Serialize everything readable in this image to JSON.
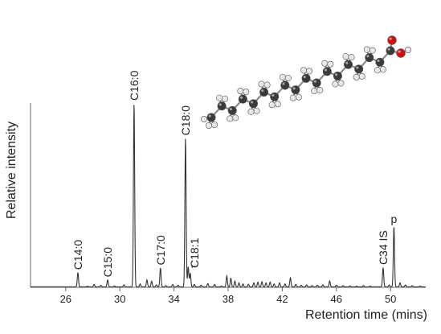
{
  "chart_data": {
    "type": "line",
    "xlabel": "Retention time (mins)",
    "ylabel": "Relative intensity",
    "xlim": [
      23.4,
      52.6
    ],
    "ylim": [
      0,
      100
    ],
    "xticks": [
      26,
      30,
      34,
      38,
      42,
      46,
      50
    ],
    "grid": false,
    "legend": "none",
    "line_color": "#333333",
    "series": [
      {
        "peaks": [
          [
            26.9,
            7.8
          ],
          [
            27.6,
            0.4
          ],
          [
            28.1,
            1.4
          ],
          [
            28.6,
            0.8
          ],
          [
            29.1,
            3.8
          ],
          [
            29.6,
            0.5
          ],
          [
            30.3,
            1.1
          ],
          [
            31.05,
            100.0
          ],
          [
            31.5,
            1.6
          ],
          [
            32.0,
            3.8
          ],
          [
            32.35,
            3.1
          ],
          [
            32.7,
            1.1
          ],
          [
            33.0,
            10.3
          ],
          [
            33.4,
            0.7
          ],
          [
            33.9,
            1.3
          ],
          [
            34.3,
            0.9
          ],
          [
            34.85,
            81.0
          ],
          [
            35.05,
            11.0
          ],
          [
            35.2,
            7.5
          ],
          [
            35.5,
            1.3
          ],
          [
            36.0,
            0.9
          ],
          [
            36.5,
            1.8
          ],
          [
            37.0,
            1.3
          ],
          [
            37.5,
            0.5
          ],
          [
            37.9,
            5.9
          ],
          [
            38.2,
            4.8
          ],
          [
            38.5,
            3.2
          ],
          [
            38.8,
            2.2
          ],
          [
            39.1,
            1.6
          ],
          [
            39.5,
            1.4
          ],
          [
            39.9,
            2.2
          ],
          [
            40.2,
            2.6
          ],
          [
            40.5,
            2.8
          ],
          [
            40.8,
            2.2
          ],
          [
            41.1,
            2.6
          ],
          [
            41.4,
            1.6
          ],
          [
            41.8,
            2.2
          ],
          [
            42.2,
            1.6
          ],
          [
            42.6,
            5.0
          ],
          [
            43.0,
            1.4
          ],
          [
            43.4,
            0.9
          ],
          [
            43.8,
            1.1
          ],
          [
            44.2,
            0.7
          ],
          [
            44.6,
            0.9
          ],
          [
            45.0,
            1.1
          ],
          [
            45.5,
            3.2
          ],
          [
            46.0,
            0.9
          ],
          [
            46.5,
            0.7
          ],
          [
            47.0,
            0.5
          ],
          [
            47.5,
            0.4
          ],
          [
            48.0,
            0.7
          ],
          [
            48.5,
            0.5
          ],
          [
            49.45,
            10.5
          ],
          [
            49.9,
            1.0
          ],
          [
            50.25,
            33.0
          ],
          [
            50.7,
            2.2
          ],
          [
            51.1,
            1.1
          ],
          [
            51.6,
            0.7
          ],
          [
            52.2,
            0.5
          ]
        ]
      }
    ],
    "annotations": [
      {
        "text": "C14:0",
        "x": 26.9
      },
      {
        "text": "C15:0",
        "x": 29.1
      },
      {
        "text": "C16:0",
        "x": 31.05
      },
      {
        "text": "C17:0",
        "x": 33.0
      },
      {
        "text": "C18:0",
        "x": 34.85
      },
      {
        "text": "C18:1",
        "x": 35.1
      },
      {
        "text": "C34 IS",
        "x": 49.45
      },
      {
        "text": "p",
        "x": 50.25
      }
    ],
    "molecule": {
      "name": "stearic acid (C18:0)",
      "carbon_color": "#3a3a3a",
      "hydrogen_color": "#e6e6e6",
      "oxygen_color": "#d01010"
    }
  }
}
